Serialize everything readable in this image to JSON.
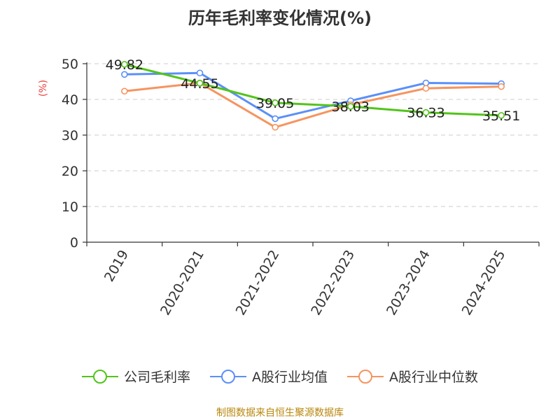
{
  "chart_data": {
    "type": "line",
    "title": "历年毛利率变化情况(%)",
    "ylabel": "(%)",
    "ylim": [
      0,
      50
    ],
    "yticks": [
      0,
      10,
      20,
      30,
      40,
      50
    ],
    "grid": true,
    "categories": [
      "2019",
      "2020-2021",
      "2021-2022",
      "2022-2023",
      "2023-2024",
      "2024-2025"
    ],
    "series": [
      {
        "name": "公司毛利率",
        "color": "#52c41a",
        "values": [
          49.82,
          44.55,
          39.05,
          38.03,
          36.33,
          35.51
        ],
        "labels": [
          "49.82",
          "44.55",
          "39.05",
          "38.03",
          "36.33",
          "35.51"
        ]
      },
      {
        "name": "A股行业均值",
        "color": "#5b8ff9",
        "values": [
          47.0,
          47.4,
          34.6,
          39.6,
          44.6,
          44.4
        ]
      },
      {
        "name": "A股行业中位数",
        "color": "#f6945f",
        "values": [
          42.3,
          44.6,
          32.2,
          38.5,
          43.1,
          43.6
        ]
      }
    ],
    "legend_position": "bottom"
  },
  "source_note": "制图数据来自恒生聚源数据库"
}
